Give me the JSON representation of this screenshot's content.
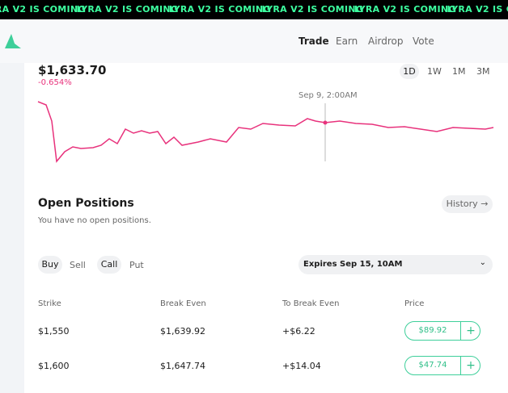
{
  "ticker": "LYRA V2 IS COMING",
  "nav": [
    "Trade",
    "Earn",
    "Airdrop",
    "Vote"
  ],
  "price": {
    "value": "$1,633.70",
    "change": "-0.654%",
    "tooltip": "Sep 9, 2:00AM"
  },
  "timeframes": [
    "1D",
    "1W",
    "1M",
    "3M"
  ],
  "positions": {
    "title": "Open Positions",
    "empty": "You have no open positions.",
    "history": "History"
  },
  "toggles": {
    "side": [
      "Buy",
      "Sell"
    ],
    "kind": [
      "Call",
      "Put"
    ],
    "expiry": "Expires Sep 15, 10AM"
  },
  "table": {
    "headers": [
      "Strike",
      "Break Even",
      "To Break Even",
      "Price"
    ],
    "rows": [
      [
        "$1,550",
        "$1,639.92",
        "+$6.22",
        "$89.92"
      ],
      [
        "$1,600",
        "$1,647.74",
        "+$14.04",
        "$47.74"
      ]
    ]
  }
}
